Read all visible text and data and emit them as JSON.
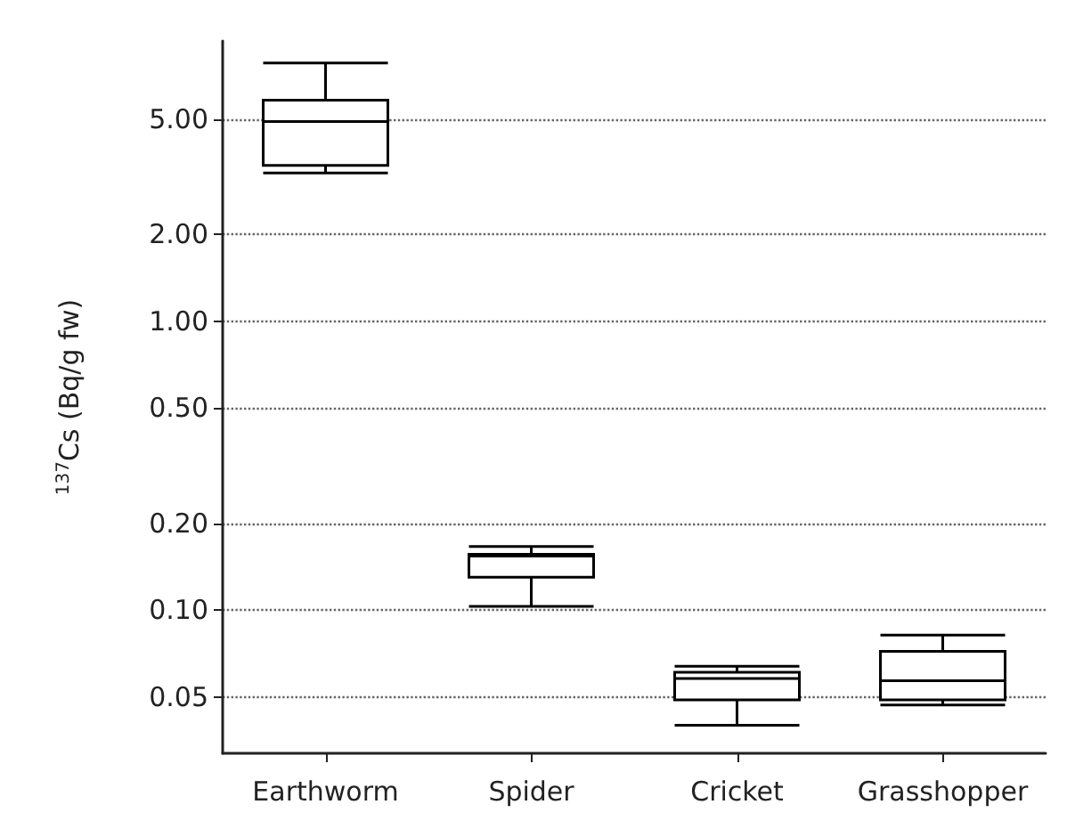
{
  "chart_data": {
    "type": "box",
    "ylabel": "$^{137}$Cs (Bq/g fw)",
    "categories": [
      "Earthworm",
      "Spider",
      "Cricket",
      "Grasshopper"
    ],
    "boxes": [
      {
        "low": 3.25,
        "q1": 3.45,
        "median": 4.9,
        "q3": 5.8,
        "high": 7.8
      },
      {
        "low": 0.103,
        "q1": 0.13,
        "median": 0.154,
        "q3": 0.156,
        "high": 0.166
      },
      {
        "low": 0.04,
        "q1": 0.049,
        "median": 0.058,
        "q3": 0.061,
        "high": 0.064
      },
      {
        "low": 0.047,
        "q1": 0.049,
        "median": 0.057,
        "q3": 0.072,
        "high": 0.082
      }
    ],
    "color": "#000000",
    "log": "y",
    "ylim": [
      0.032,
      9.3
    ],
    "yticks": [
      {
        "value": 0.05,
        "label": "0.05"
      },
      {
        "value": 0.1,
        "label": "0.10"
      },
      {
        "value": 0.2,
        "label": "0.20"
      },
      {
        "value": 0.5,
        "label": "0.50"
      },
      {
        "value": 1,
        "label": "1.00"
      },
      {
        "value": 2,
        "label": "2.00"
      },
      {
        "value": 5,
        "label": "5.00"
      }
    ],
    "grid": "y"
  }
}
